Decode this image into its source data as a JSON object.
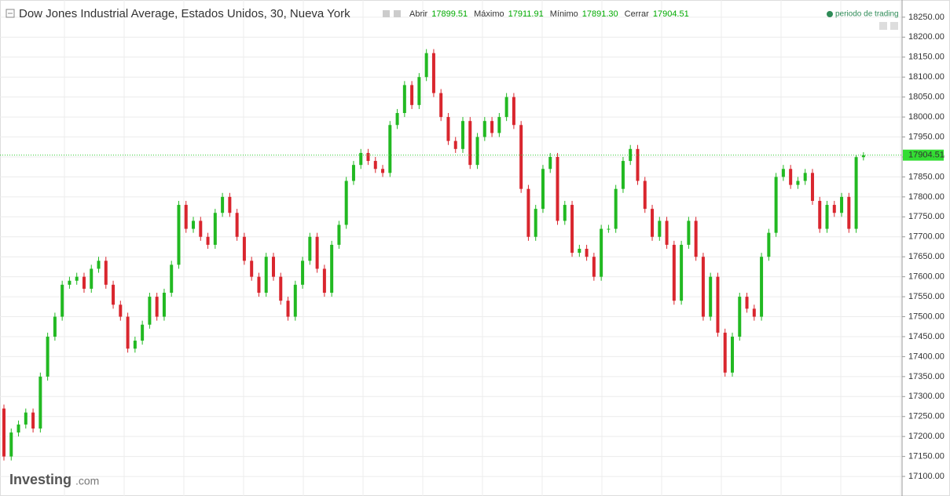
{
  "chart_data": {
    "type": "candlestick",
    "title": "Dow Jones Industrial Average, Estados Unidos, 30, Nueva York",
    "quote": [
      {
        "label": "Abrir",
        "value": "17899.51"
      },
      {
        "label": "Máximo",
        "value": "17911.91"
      },
      {
        "label": "Mínimo",
        "value": "17891.30"
      },
      {
        "label": "Cerrar",
        "value": "17904.51"
      }
    ],
    "legend_label": "periodo de trading",
    "watermark": [
      "Investing",
      ".com"
    ],
    "up_color": "#22b922",
    "down_color": "#d9262e",
    "grid": true,
    "last_price": {
      "value": 17904.51,
      "label": "17904.51"
    },
    "ylim": [
      17051,
      18293
    ],
    "yticks": [
      {
        "value": 17100,
        "label": "17100.00"
      },
      {
        "value": 17150,
        "label": "17150.00"
      },
      {
        "value": 17200,
        "label": "17200.00"
      },
      {
        "value": 17250,
        "label": "17250.00"
      },
      {
        "value": 17300,
        "label": "17300.00"
      },
      {
        "value": 17350,
        "label": "17350.00"
      },
      {
        "value": 17400,
        "label": "17400.00"
      },
      {
        "value": 17450,
        "label": "17450.00"
      },
      {
        "value": 17500,
        "label": "17500.00"
      },
      {
        "value": 17550,
        "label": "17550.00"
      },
      {
        "value": 17600,
        "label": "17600.00"
      },
      {
        "value": 17650,
        "label": "17650.00"
      },
      {
        "value": 17700,
        "label": "17700.00"
      },
      {
        "value": 17750,
        "label": "17750.00"
      },
      {
        "value": 17800,
        "label": "17800.00"
      },
      {
        "value": 17850,
        "label": "17850.00"
      },
      {
        "value": 17900,
        "label": "17900.00"
      },
      {
        "value": 17950,
        "label": "17950.00"
      },
      {
        "value": 18000,
        "label": "18000.00"
      },
      {
        "value": 18050,
        "label": "18050.00"
      },
      {
        "value": 18100,
        "label": "18100.00"
      },
      {
        "value": 18150,
        "label": "18150.00"
      },
      {
        "value": 18200,
        "label": "18200.00"
      },
      {
        "value": 18250,
        "label": "18250.00"
      }
    ],
    "open": [
      17270,
      17150,
      17210,
      17230,
      17260,
      17220,
      17350,
      17450,
      17500,
      17580,
      17590,
      17600,
      17570,
      17620,
      17640,
      17580,
      17530,
      17500,
      17420,
      17440,
      17480,
      17550,
      17500,
      17560,
      17630,
      17780,
      17720,
      17740,
      17700,
      17680,
      17760,
      17800,
      17760,
      17700,
      17640,
      17600,
      17560,
      17650,
      17600,
      17540,
      17500,
      17580,
      17640,
      17700,
      17620,
      17560,
      17680,
      17730,
      17840,
      17880,
      17910,
      17890,
      17870,
      17860,
      17980,
      18010,
      18080,
      18030,
      18100,
      18160,
      18060,
      18000,
      17940,
      17920,
      17990,
      17880,
      17950,
      17990,
      17960,
      18000,
      18050,
      17980,
      17820,
      17700,
      17770,
      17870,
      17900,
      17740,
      17780,
      17660,
      17670,
      17650,
      17600,
      17720,
      17720,
      17820,
      17890,
      17920,
      17840,
      17770,
      17700,
      17740,
      17680,
      17540,
      17680,
      17740,
      17650,
      17500,
      17600,
      17460,
      17360,
      17450,
      17550,
      17520,
      17500,
      17650,
      17710,
      17850,
      17870,
      17830,
      17840,
      17860,
      17790,
      17720,
      17780,
      17760,
      17800,
      17720,
      17899.51
    ],
    "high": [
      17280,
      17220,
      17240,
      17270,
      17270,
      17360,
      17460,
      17510,
      17590,
      17600,
      17610,
      17610,
      17630,
      17650,
      17650,
      17590,
      17540,
      17510,
      17450,
      17490,
      17560,
      17560,
      17570,
      17640,
      17790,
      17790,
      17750,
      17750,
      17710,
      17770,
      17810,
      17810,
      17770,
      17710,
      17650,
      17610,
      17660,
      17660,
      17610,
      17550,
      17590,
      17650,
      17710,
      17710,
      17630,
      17690,
      17740,
      17850,
      17890,
      17920,
      17920,
      17900,
      17880,
      17990,
      18020,
      18090,
      18090,
      18110,
      18170,
      18170,
      18070,
      18010,
      17950,
      18000,
      18000,
      17960,
      18000,
      18000,
      18010,
      18060,
      18060,
      17990,
      17830,
      17780,
      17880,
      17910,
      17910,
      17790,
      17790,
      17680,
      17680,
      17660,
      17730,
      17730,
      17830,
      17900,
      17930,
      17930,
      17850,
      17780,
      17750,
      17750,
      17690,
      17690,
      17750,
      17750,
      17660,
      17610,
      17610,
      17470,
      17460,
      17560,
      17560,
      17530,
      17660,
      17720,
      17860,
      17880,
      17880,
      17850,
      17870,
      17870,
      17800,
      17790,
      17790,
      17810,
      17810,
      17905,
      17911.91
    ],
    "low": [
      17140,
      17140,
      17200,
      17220,
      17210,
      17210,
      17340,
      17440,
      17490,
      17570,
      17580,
      17560,
      17560,
      17610,
      17570,
      17520,
      17490,
      17410,
      17410,
      17430,
      17470,
      17490,
      17490,
      17550,
      17620,
      17710,
      17710,
      17690,
      17670,
      17670,
      17750,
      17750,
      17690,
      17630,
      17590,
      17550,
      17550,
      17590,
      17530,
      17490,
      17490,
      17570,
      17630,
      17610,
      17550,
      17550,
      17670,
      17720,
      17830,
      17870,
      17880,
      17860,
      17850,
      17850,
      17970,
      18000,
      18020,
      18020,
      18090,
      18050,
      17990,
      17930,
      17910,
      17910,
      17870,
      17870,
      17940,
      17950,
      17950,
      17990,
      17970,
      17810,
      17690,
      17690,
      17760,
      17860,
      17730,
      17730,
      17650,
      17650,
      17640,
      17590,
      17590,
      17710,
      17710,
      17810,
      17880,
      17830,
      17760,
      17690,
      17690,
      17670,
      17530,
      17530,
      17670,
      17640,
      17490,
      17490,
      17450,
      17350,
      17350,
      17440,
      17510,
      17490,
      17490,
      17640,
      17700,
      17840,
      17820,
      17820,
      17830,
      17780,
      17710,
      17710,
      17750,
      17750,
      17710,
      17710,
      17891.3
    ],
    "close": [
      17150,
      17210,
      17230,
      17260,
      17220,
      17350,
      17450,
      17500,
      17580,
      17590,
      17600,
      17570,
      17620,
      17640,
      17580,
      17530,
      17500,
      17420,
      17440,
      17480,
      17550,
      17500,
      17560,
      17630,
      17780,
      17720,
      17740,
      17700,
      17680,
      17760,
      17800,
      17760,
      17700,
      17640,
      17600,
      17560,
      17650,
      17600,
      17540,
      17500,
      17580,
      17640,
      17700,
      17620,
      17560,
      17680,
      17730,
      17840,
      17880,
      17910,
      17890,
      17870,
      17860,
      17980,
      18010,
      18080,
      18030,
      18100,
      18160,
      18060,
      18000,
      17940,
      17920,
      17990,
      17880,
      17950,
      17990,
      17960,
      18000,
      18050,
      17980,
      17820,
      17700,
      17770,
      17870,
      17900,
      17740,
      17780,
      17660,
      17670,
      17650,
      17600,
      17720,
      17720,
      17820,
      17890,
      17920,
      17840,
      17770,
      17700,
      17740,
      17680,
      17540,
      17680,
      17740,
      17650,
      17500,
      17600,
      17460,
      17360,
      17450,
      17550,
      17520,
      17500,
      17650,
      17710,
      17850,
      17870,
      17830,
      17840,
      17860,
      17790,
      17720,
      17780,
      17760,
      17800,
      17720,
      17899.51,
      17904.51
    ]
  }
}
